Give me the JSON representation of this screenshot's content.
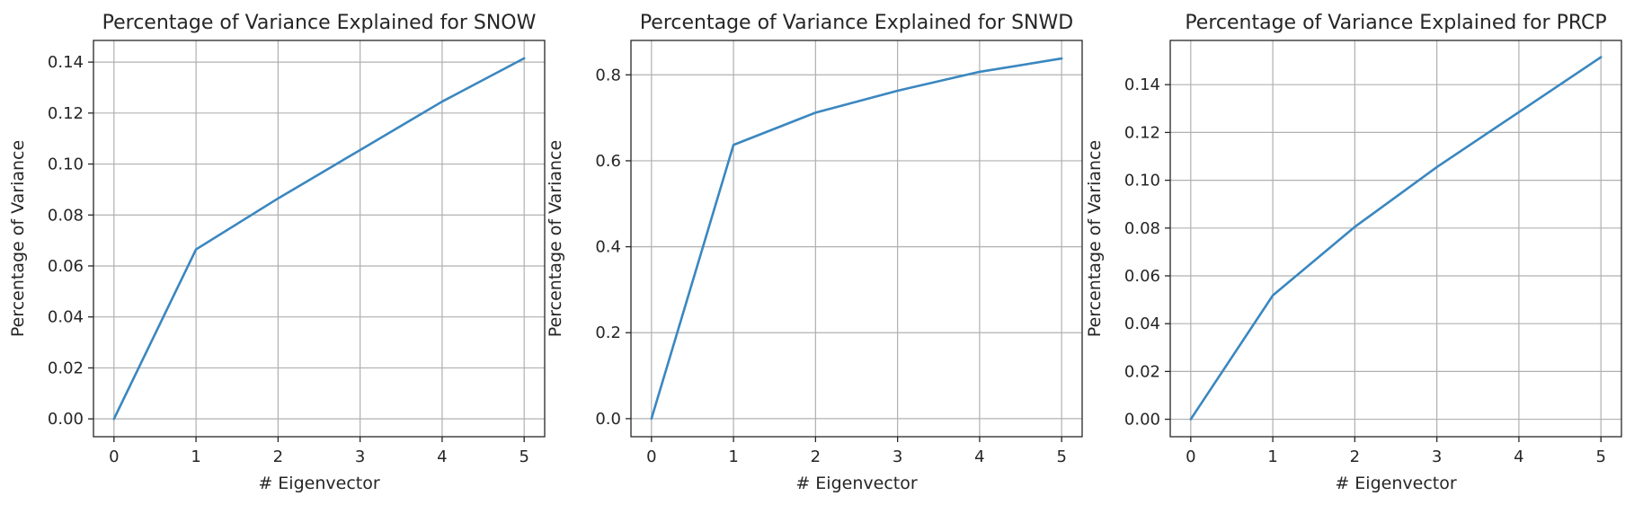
{
  "chart_data": [
    {
      "type": "line",
      "title": "Percentage of Variance Explained for SNOW",
      "xlabel": "# Eigenvector",
      "ylabel": "Percentage of Variance",
      "xlim": [
        -0.25,
        5.25
      ],
      "ylim": [
        -0.007,
        0.1485
      ],
      "grid": true,
      "xticks": [
        0,
        1,
        2,
        3,
        4,
        5
      ],
      "xtick_labels": [
        "0",
        "1",
        "2",
        "3",
        "4",
        "5"
      ],
      "yticks": [
        0.0,
        0.02,
        0.04,
        0.06,
        0.08,
        0.1,
        0.12,
        0.14
      ],
      "ytick_labels": [
        "0.00",
        "0.02",
        "0.04",
        "0.06",
        "0.08",
        "0.10",
        "0.12",
        "0.14"
      ],
      "color": "#3a87c0",
      "x": [
        0,
        1,
        2,
        3,
        4,
        5
      ],
      "y": [
        0.0,
        0.0665,
        0.0865,
        0.1055,
        0.1245,
        0.1415
      ]
    },
    {
      "type": "line",
      "title": "Percentage of Variance Explained for SNWD",
      "xlabel": "# Eigenvector",
      "ylabel": "Percentage of Variance",
      "xlim": [
        -0.25,
        5.25
      ],
      "ylim": [
        -0.042,
        0.88
      ],
      "grid": true,
      "xticks": [
        0,
        1,
        2,
        3,
        4,
        5
      ],
      "xtick_labels": [
        "0",
        "1",
        "2",
        "3",
        "4",
        "5"
      ],
      "yticks": [
        0.0,
        0.2,
        0.4,
        0.6,
        0.8
      ],
      "ytick_labels": [
        "0.0",
        "0.2",
        "0.4",
        "0.6",
        "0.8"
      ],
      "color": "#3a87c0",
      "x": [
        0,
        1,
        2,
        3,
        4,
        5
      ],
      "y": [
        0.0,
        0.637,
        0.712,
        0.763,
        0.807,
        0.838
      ]
    },
    {
      "type": "line",
      "title": "Percentage of Variance Explained for PRCP",
      "xlabel": "# Eigenvector",
      "ylabel": "Percentage of Variance",
      "xlim": [
        -0.25,
        5.25
      ],
      "ylim": [
        -0.0073,
        0.1585
      ],
      "grid": true,
      "xticks": [
        0,
        1,
        2,
        3,
        4,
        5
      ],
      "xtick_labels": [
        "0",
        "1",
        "2",
        "3",
        "4",
        "5"
      ],
      "yticks": [
        0.0,
        0.02,
        0.04,
        0.06,
        0.08,
        0.1,
        0.12,
        0.14
      ],
      "ytick_labels": [
        "0.00",
        "0.02",
        "0.04",
        "0.06",
        "0.08",
        "0.10",
        "0.12",
        "0.14"
      ],
      "color": "#3a87c0",
      "x": [
        0,
        1,
        2,
        3,
        4,
        5
      ],
      "y": [
        0.0,
        0.0518,
        0.0805,
        0.1055,
        0.1285,
        0.1515
      ]
    }
  ]
}
